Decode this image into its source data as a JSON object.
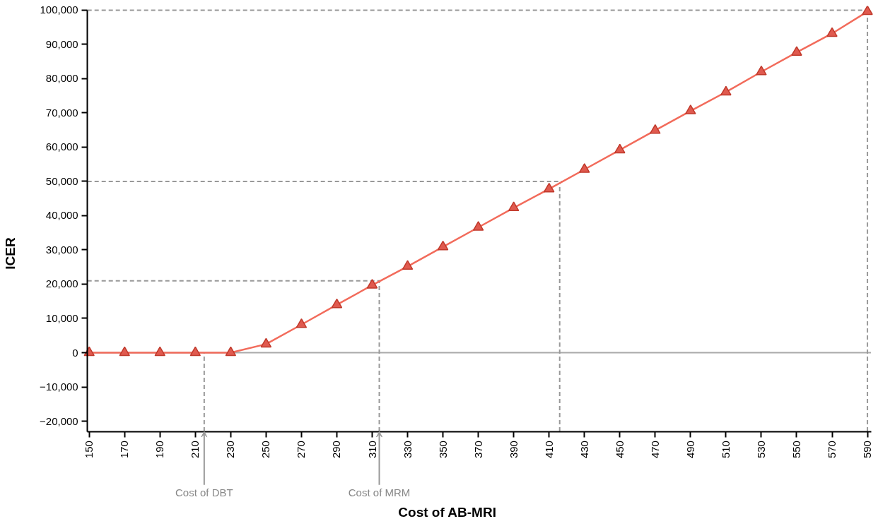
{
  "chart_data": {
    "type": "line",
    "xlabel": "Cost of AB-MRI",
    "ylabel": "ICER",
    "x": [
      150,
      170,
      190,
      210,
      230,
      250,
      270,
      290,
      310,
      330,
      350,
      370,
      390,
      410,
      430,
      450,
      470,
      490,
      510,
      530,
      550,
      570,
      590
    ],
    "series": [
      {
        "color": "#f26b5b",
        "values": [
          0,
          0,
          0,
          0,
          0,
          2500,
          8200,
          14000,
          19700,
          25200,
          30900,
          36600,
          42300,
          47800,
          53500,
          59200,
          64900,
          70600,
          76100,
          82000,
          87700,
          93200,
          99600
        ]
      }
    ],
    "marker": "triangle",
    "line_style": "solid",
    "grid": false,
    "xlim": [
      149,
      592
    ],
    "ylim": [
      -23000,
      100000
    ],
    "xticks": [
      150,
      170,
      190,
      210,
      230,
      250,
      270,
      290,
      310,
      330,
      350,
      370,
      390,
      410,
      430,
      450,
      470,
      490,
      510,
      530,
      550,
      570,
      590
    ],
    "yticks": [
      {
        "value": -20000,
        "label": "−20,000"
      },
      {
        "value": -10000,
        "label": "−10,000"
      },
      0,
      {
        "value": 10000,
        "label": "10,000"
      },
      {
        "value": 20000,
        "label": "20,000"
      },
      {
        "value": 30000,
        "label": "30,000"
      },
      {
        "value": 40000,
        "label": "40,000"
      },
      {
        "value": 50000,
        "label": "50,000"
      },
      {
        "value": 60000,
        "label": "60,000"
      },
      {
        "value": 70000,
        "label": "70,000"
      },
      {
        "value": 80000,
        "label": "80,000"
      },
      {
        "value": 90000,
        "label": "90,000"
      },
      {
        "value": 100000,
        "label": "100,000"
      }
    ],
    "ref_lines": [
      {
        "axis": "y",
        "value": 0,
        "label": null,
        "color": "#aaaaaa",
        "line_style": "solid"
      },
      {
        "axis": "y",
        "value": 100000,
        "label": null,
        "color": "#999999",
        "line_style": "dashed"
      },
      {
        "axis": "y",
        "value": 50000,
        "label": null,
        "color": "#999999",
        "line_style": "dashed"
      },
      {
        "axis": "y",
        "value": 21000,
        "label": null,
        "color": "#999999",
        "line_style": "dashed"
      },
      {
        "axis": "x",
        "value": 215,
        "label": "Cost of DBT",
        "color": "#999999",
        "line_style": "dashed"
      },
      {
        "axis": "x",
        "value": 314,
        "label": "Cost of MRM",
        "color": "#999999",
        "line_style": "dashed"
      },
      {
        "axis": "x",
        "value": 416,
        "label": null,
        "color": "#999999",
        "line_style": "dashed"
      },
      {
        "axis": "x",
        "value": 590,
        "label": null,
        "color": "#999999",
        "line_style": "dashed"
      }
    ]
  }
}
